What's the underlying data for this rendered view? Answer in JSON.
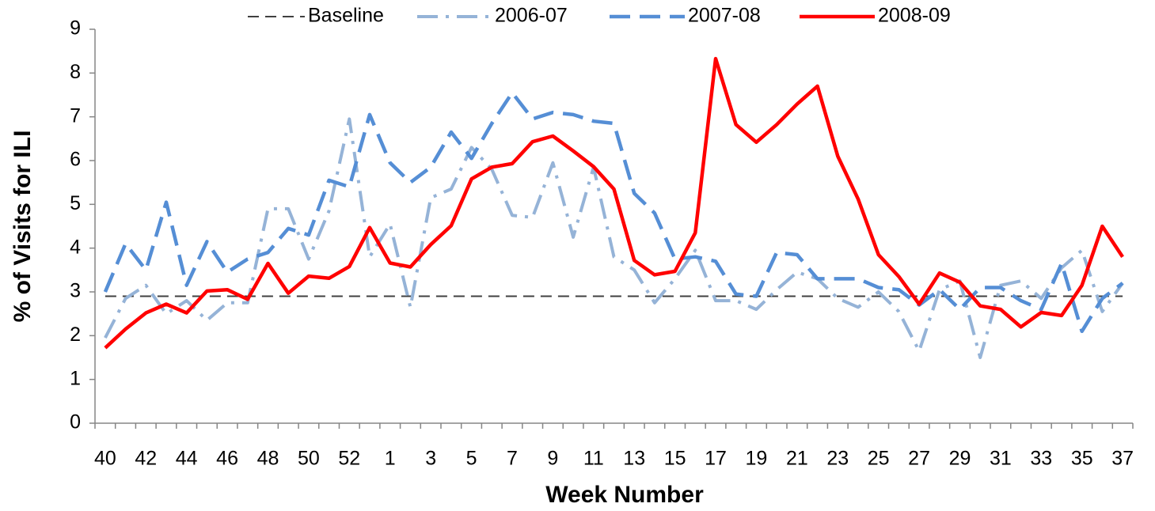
{
  "chart_data": {
    "type": "line",
    "x_label": "Week Number",
    "y_label": "% of Visits for ILI",
    "categories": [
      "40",
      null,
      "42",
      null,
      "44",
      null,
      "46",
      null,
      "48",
      null,
      "50",
      null,
      "52",
      null,
      "1",
      null,
      "3",
      null,
      "5",
      null,
      "7",
      null,
      "9",
      null,
      "11",
      null,
      "13",
      null,
      "15",
      null,
      "17",
      null,
      "19",
      null,
      "21",
      null,
      "23",
      null,
      "25",
      null,
      "27",
      null,
      "29",
      null,
      "31",
      null,
      "33",
      null,
      "35",
      null,
      "37"
    ],
    "ylim": [
      0,
      9
    ],
    "yticks": [
      0,
      1,
      2,
      3,
      4,
      5,
      6,
      7,
      8,
      9
    ],
    "grid": false,
    "legend": "top",
    "series": [
      {
        "name": "Baseline",
        "color": "#404040",
        "style": "dashed",
        "values": [
          2.9,
          2.9,
          2.9,
          2.9,
          2.9,
          2.9,
          2.9,
          2.9,
          2.9,
          2.9,
          2.9,
          2.9,
          2.9,
          2.9,
          2.9,
          2.9,
          2.9,
          2.9,
          2.9,
          2.9,
          2.9,
          2.9,
          2.9,
          2.9,
          2.9,
          2.9,
          2.9,
          2.9,
          2.9,
          2.9,
          2.9,
          2.9,
          2.9,
          2.9,
          2.9,
          2.9,
          2.9,
          2.9,
          2.9,
          2.9,
          2.9,
          2.9,
          2.9,
          2.9,
          2.9,
          2.9,
          2.9,
          2.9,
          2.9,
          2.9,
          2.9
        ]
      },
      {
        "name": "2006-07",
        "color": "#95b3d7",
        "style": "dash-dot",
        "values": [
          1.95,
          2.85,
          3.15,
          2.5,
          2.8,
          2.35,
          2.75,
          2.75,
          4.9,
          4.9,
          3.75,
          4.85,
          6.95,
          3.8,
          4.55,
          2.65,
          5.15,
          5.35,
          6.3,
          5.8,
          4.75,
          4.7,
          5.95,
          4.25,
          5.85,
          3.8,
          3.5,
          2.75,
          3.3,
          3.95,
          2.8,
          2.8,
          2.6,
          3.05,
          3.45,
          3.3,
          2.85,
          2.65,
          3.0,
          2.55,
          1.65,
          3.05,
          3.25,
          1.5,
          3.15,
          3.25,
          2.85,
          3.55,
          3.95,
          2.55,
          3.2
        ]
      },
      {
        "name": "2007-08",
        "color": "#558ed5",
        "style": "long-dash",
        "values": [
          3.0,
          4.1,
          3.5,
          5.05,
          3.15,
          4.15,
          3.45,
          3.75,
          3.9,
          4.45,
          4.3,
          5.55,
          5.4,
          7.05,
          5.95,
          5.5,
          5.85,
          6.65,
          6.05,
          6.85,
          7.55,
          6.95,
          7.1,
          7.05,
          6.9,
          6.85,
          5.25,
          4.8,
          3.75,
          3.8,
          3.7,
          2.95,
          2.9,
          3.9,
          3.85,
          3.3,
          3.3,
          3.3,
          3.1,
          3.05,
          2.7,
          3.05,
          2.6,
          3.1,
          3.1,
          2.8,
          2.6,
          3.65,
          2.1,
          2.85,
          3.2
        ]
      },
      {
        "name": "2008-09",
        "color": "#ff0000",
        "style": "solid",
        "values": [
          1.72,
          2.15,
          2.52,
          2.72,
          2.52,
          3.02,
          3.05,
          2.83,
          3.65,
          2.97,
          3.36,
          3.31,
          3.58,
          4.47,
          3.66,
          3.57,
          4.08,
          4.51,
          5.58,
          5.85,
          5.93,
          6.43,
          6.56,
          6.22,
          5.86,
          5.35,
          3.72,
          3.39,
          3.47,
          4.35,
          8.33,
          6.82,
          6.42,
          6.82,
          7.29,
          7.7,
          6.1,
          5.12,
          3.85,
          3.35,
          2.72,
          3.43,
          3.22,
          2.68,
          2.6,
          2.2,
          2.53,
          2.46,
          3.15,
          4.5,
          3.8
        ]
      }
    ]
  }
}
